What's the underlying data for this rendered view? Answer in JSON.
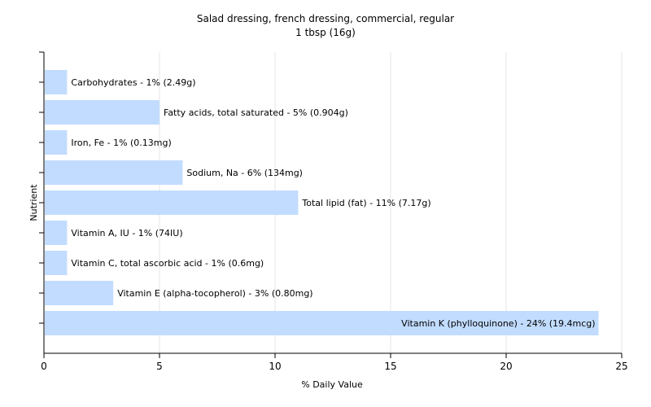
{
  "chart_data": {
    "type": "bar",
    "orientation": "horizontal",
    "title": "Salad dressing, french dressing, commercial, regular",
    "subtitle": "1 tbsp (16g)",
    "xlabel": "% Daily Value",
    "ylabel": "Nutrient",
    "xlim": [
      0,
      25
    ],
    "xticks": [
      0,
      5,
      10,
      15,
      20,
      25
    ],
    "grid": true,
    "bar_color": "#c2dcff",
    "categories": [
      "Carbohydrates",
      "Fatty acids, total saturated",
      "Iron, Fe",
      "Sodium, Na",
      "Total lipid (fat)",
      "Vitamin A, IU",
      "Vitamin C, total ascorbic acid",
      "Vitamin E (alpha-tocopherol)",
      "Vitamin K (phylloquinone)"
    ],
    "values": [
      1,
      5,
      1,
      6,
      11,
      1,
      1,
      3,
      24
    ],
    "labels": [
      "Carbohydrates - 1% (2.49g)",
      "Fatty acids, total saturated - 5% (0.904g)",
      "Iron, Fe - 1% (0.13mg)",
      "Sodium, Na - 6% (134mg)",
      "Total lipid (fat) - 11% (7.17g)",
      "Vitamin A, IU - 1% (74IU)",
      "Vitamin C, total ascorbic acid - 1% (0.6mg)",
      "Vitamin E (alpha-tocopherol) - 3% (0.80mg)",
      "Vitamin K (phylloquinone) - 24% (19.4mcg)"
    ]
  }
}
